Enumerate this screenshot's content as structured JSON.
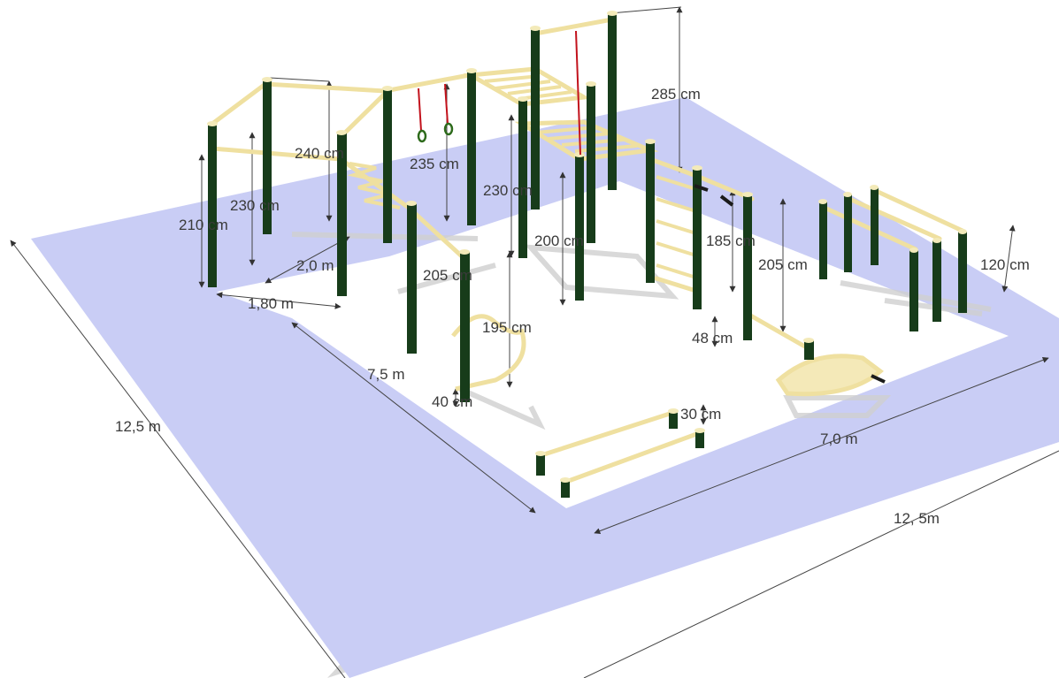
{
  "colors": {
    "ground_outer": "#c9cdf5",
    "ground_inner": "#ffffff",
    "slab_edge": "#d9d9d9",
    "post": "#173c1a",
    "post_cap": "#f3eab9",
    "bar": "#efe0a0",
    "bar_dark": "#b9a86a",
    "shadow": "#c8c8c8",
    "ring_strap": "#c2121c",
    "ring": "#2e6b1c",
    "dim_line": "#444444"
  },
  "labels": {
    "w_285": "285 cm",
    "w_240": "240 cm",
    "w_235": "235 cm",
    "w_230a": "230 cm",
    "w_230b": "230 cm",
    "w_210": "210 cm",
    "w_200": "200 cm",
    "w_185": "185 cm",
    "w_205a": "205 cm",
    "w_205b": "205 cm",
    "w_120": "120 cm",
    "w_195": "195 cm",
    "w_48": "48 cm",
    "w_40": "40 cm",
    "w_30": "30 cm",
    "d_2_0": "2,0 m",
    "d_1_80": "1,80  m",
    "d_7_5": "7,5 m",
    "d_7_0": "7,0 m",
    "d_12_5_left": "12,5 m",
    "d_12_5_bottom": "12, 5m"
  }
}
